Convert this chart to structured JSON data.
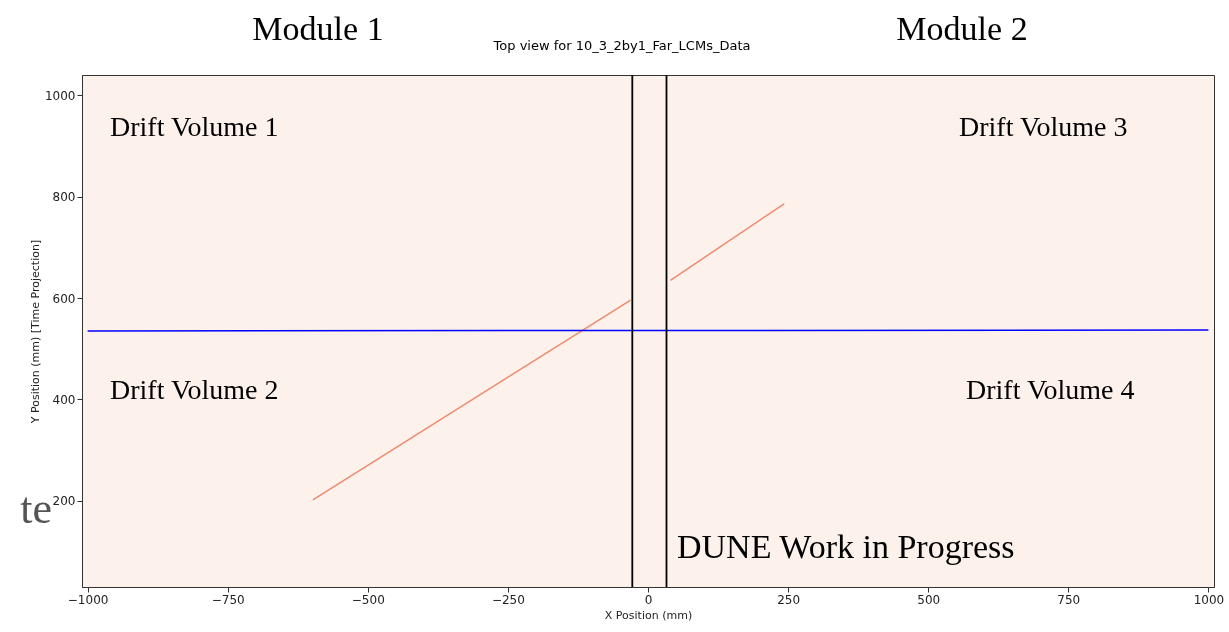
{
  "chart_data": {
    "type": "line",
    "title": "Top view for 10_3_2by1_Far_LCMs_Data",
    "xlabel": "X Position (mm)",
    "ylabel": "Y Position (mm) [Time Projection]",
    "xlim": [
      -1010,
      1010
    ],
    "ylim": [
      30,
      1040
    ],
    "xticks": [
      -1000,
      -750,
      -500,
      -250,
      0,
      250,
      500,
      750,
      1000
    ],
    "yticks": [
      200,
      400,
      600,
      800,
      1000
    ],
    "series": [
      {
        "color": "#f08a6e",
        "x": [
          -598,
          -31
        ],
        "values": [
          202,
          596
        ]
      },
      {
        "color": "#f08a6e",
        "x": [
          40,
          243
        ],
        "values": [
          635,
          786
        ]
      },
      {
        "color": "#0000ff",
        "x": [
          -1000,
          1000
        ],
        "values": [
          535,
          537
        ]
      }
    ],
    "ref_lines": [
      {
        "axis": "x",
        "value": -28,
        "color": "#000000"
      },
      {
        "axis": "x",
        "value": 33,
        "color": "#000000"
      }
    ],
    "annotations": [
      "Module 1",
      "Module 2",
      "Drift Volume 1",
      "Drift Volume 3",
      "Drift Volume 2",
      "Drift Volume 4",
      "DUNE Work in Progress",
      "te"
    ]
  }
}
